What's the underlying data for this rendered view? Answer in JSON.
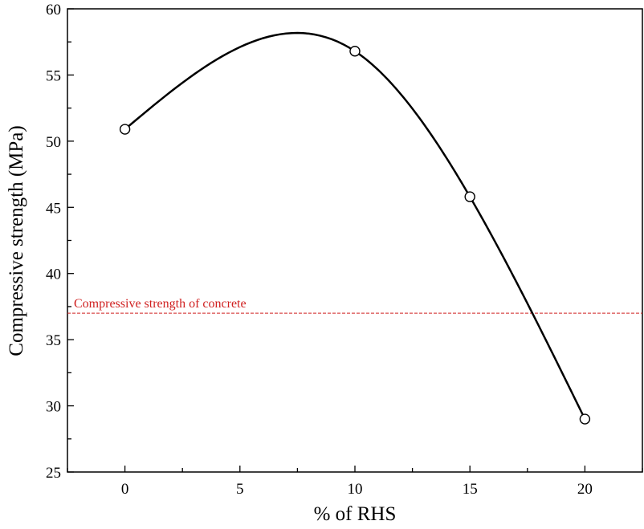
{
  "chart_data": {
    "type": "line",
    "xlabel": "% of RHS",
    "ylabel": "Compressive strength (MPa)",
    "xlim": [
      -2.5,
      22.5
    ],
    "ylim": [
      25,
      60
    ],
    "x_ticks": [
      0,
      5,
      10,
      15,
      20
    ],
    "y_ticks": [
      25,
      30,
      35,
      40,
      45,
      50,
      55,
      60
    ],
    "grid": false,
    "smooth_curve": true,
    "series": [
      {
        "x": [
          0,
          10,
          15,
          20
        ],
        "y": [
          50.9,
          56.8,
          45.8,
          29.0
        ],
        "line_color": "#000000",
        "marker": "open-circle"
      }
    ],
    "reference_line": {
      "y": 37,
      "label": "Compressive strength of concrete",
      "color": "#d02020",
      "style": "dashed"
    }
  }
}
